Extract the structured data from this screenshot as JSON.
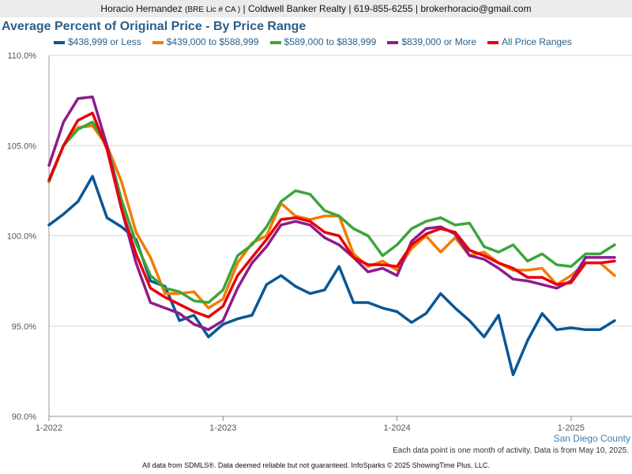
{
  "header": {
    "agent": "Horacio Hernandez",
    "license": "(BRE Lic # CA )",
    "details": "| Coldwell Banker Realty | 619-855-6255 | brokerhoracio@gmail.com"
  },
  "geography": "San Diego County",
  "footer": {
    "note": "Each data point is one month of activity. Data is from May 10, 2025.",
    "disclaimer": "All data from SDMLS®. Data deemed reliable but not guaranteed. InfoSparks © 2025 ShowingTime Plus, LLC."
  },
  "chart_data": {
    "type": "line",
    "title": "Average Percent of Original Price - By Price Range",
    "xlabel": "",
    "ylabel": "",
    "ylim": [
      90,
      110
    ],
    "y_ticks": [
      "90.0%",
      "95.0%",
      "100.0%",
      "105.0%",
      "110.0%"
    ],
    "x_ticks": [
      {
        "label": "1-2022",
        "index": 0
      },
      {
        "label": "1-2023",
        "index": 12
      },
      {
        "label": "1-2024",
        "index": 24
      },
      {
        "label": "1-2025",
        "index": 36
      }
    ],
    "grid": true,
    "legend_position": "top",
    "x": [
      "1-2022",
      "2-2022",
      "3-2022",
      "4-2022",
      "5-2022",
      "6-2022",
      "7-2022",
      "8-2022",
      "9-2022",
      "10-2022",
      "11-2022",
      "12-2022",
      "1-2023",
      "2-2023",
      "3-2023",
      "4-2023",
      "5-2023",
      "6-2023",
      "7-2023",
      "8-2023",
      "9-2023",
      "10-2023",
      "11-2023",
      "12-2023",
      "1-2024",
      "2-2024",
      "3-2024",
      "4-2024",
      "5-2024",
      "6-2024",
      "7-2024",
      "8-2024",
      "9-2024",
      "10-2024",
      "11-2024",
      "12-2024",
      "1-2025",
      "2-2025",
      "3-2025",
      "4-2025"
    ],
    "series": [
      {
        "name": "$438,999 or Less",
        "color": "#0a5796",
        "values": [
          100.6,
          101.2,
          101.9,
          103.3,
          101.0,
          100.5,
          99.8,
          97.5,
          97.2,
          95.3,
          95.6,
          94.4,
          95.1,
          95.4,
          95.6,
          97.3,
          97.8,
          97.2,
          96.8,
          97.0,
          98.3,
          96.3,
          96.3,
          96.0,
          95.8,
          95.2,
          95.7,
          96.8,
          96.0,
          95.3,
          94.4,
          95.6,
          92.3,
          94.2,
          95.7,
          94.8,
          94.9,
          94.8,
          94.8,
          95.3
        ]
      },
      {
        "name": "$439,000 to $588,999",
        "color": "#f57a00",
        "values": [
          103.0,
          105.0,
          106.0,
          106.1,
          105.0,
          103.0,
          100.2,
          98.8,
          96.8,
          96.8,
          96.9,
          96.0,
          96.5,
          98.5,
          99.6,
          100.0,
          101.8,
          101.1,
          100.9,
          101.1,
          101.1,
          99.0,
          98.3,
          98.6,
          98.1,
          99.3,
          100.0,
          99.1,
          99.9,
          98.9,
          99.1,
          98.5,
          98.1,
          98.1,
          98.2,
          97.3,
          97.8,
          98.5,
          98.5,
          97.8
        ]
      },
      {
        "name": "$589,000 to $838,999",
        "color": "#3ba53b",
        "values": [
          103.0,
          105.0,
          105.9,
          106.3,
          105.0,
          102.0,
          99.6,
          97.8,
          97.1,
          96.9,
          96.4,
          96.3,
          97.0,
          98.9,
          99.5,
          100.5,
          101.9,
          102.5,
          102.3,
          101.4,
          101.1,
          100.4,
          100.0,
          98.9,
          99.5,
          100.4,
          100.8,
          101.0,
          100.6,
          100.7,
          99.4,
          99.1,
          99.5,
          98.6,
          99.0,
          98.4,
          98.3,
          99.0,
          99.0,
          99.5
        ]
      },
      {
        "name": "$839,000 or More",
        "color": "#8e1c8a",
        "values": [
          103.9,
          106.3,
          107.6,
          107.7,
          105.0,
          101.5,
          98.5,
          96.3,
          96.0,
          95.7,
          95.1,
          94.8,
          95.3,
          97.1,
          98.5,
          99.4,
          100.6,
          100.8,
          100.6,
          99.9,
          99.5,
          98.8,
          98.0,
          98.2,
          97.8,
          99.7,
          100.4,
          100.5,
          100.1,
          98.9,
          98.7,
          98.2,
          97.6,
          97.5,
          97.3,
          97.1,
          97.5,
          98.8,
          98.8,
          98.8
        ]
      },
      {
        "name": "All Price Ranges",
        "color": "#e8000b",
        "values": [
          103.1,
          105.0,
          106.4,
          106.8,
          104.8,
          101.5,
          99.0,
          97.1,
          96.6,
          96.2,
          95.8,
          95.5,
          96.1,
          97.8,
          98.8,
          99.8,
          100.9,
          101.0,
          100.8,
          100.2,
          100.0,
          98.8,
          98.4,
          98.4,
          98.3,
          99.5,
          100.1,
          100.4,
          100.2,
          99.2,
          98.9,
          98.5,
          98.2,
          97.7,
          97.7,
          97.3,
          97.4,
          98.5,
          98.5,
          98.6
        ]
      }
    ]
  }
}
